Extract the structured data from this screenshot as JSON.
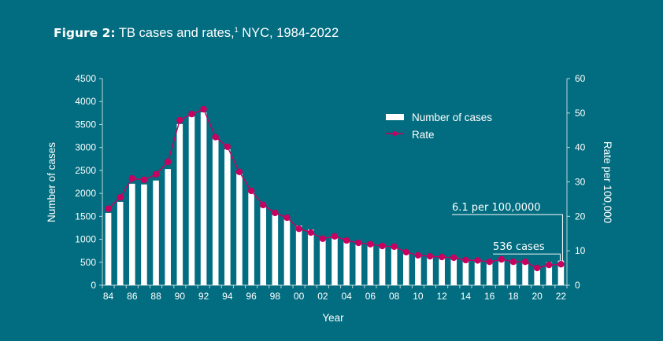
{
  "title": {
    "figure_label": "Figure 2:",
    "text": " TB cases and rates,",
    "footnote": "1",
    "suffix": " NYC, 1984-2022"
  },
  "colors": {
    "background": "#026d80",
    "bars": "#ffffff",
    "rate_line": "#c8005f",
    "axis": "#b9d6dc"
  },
  "chart_data": {
    "type": "bar",
    "title": "Figure 2: TB cases and rates, NYC, 1984-2022",
    "xlabel": "Year",
    "ylabel": "Number of cases",
    "y2label": "Rate per 100,000",
    "ylim": [
      0,
      4500
    ],
    "y2lim": [
      0,
      60
    ],
    "yticks": [
      0,
      500,
      1000,
      1500,
      2000,
      2500,
      3000,
      3500,
      4000,
      4500
    ],
    "y2ticks": [
      0,
      10,
      20,
      30,
      40,
      50,
      60
    ],
    "grid": false,
    "legend_position": "top-right",
    "categories": [
      "84",
      "85",
      "86",
      "87",
      "88",
      "89",
      "90",
      "91",
      "92",
      "93",
      "94",
      "95",
      "96",
      "97",
      "98",
      "99",
      "00",
      "01",
      "02",
      "03",
      "04",
      "05",
      "06",
      "07",
      "08",
      "09",
      "10",
      "11",
      "12",
      "13",
      "14",
      "15",
      "16",
      "17",
      "18",
      "19",
      "20",
      "21",
      "22"
    ],
    "tick_labels": [
      "84",
      "86",
      "88",
      "90",
      "92",
      "94",
      "96",
      "98",
      "00",
      "02",
      "04",
      "06",
      "08",
      "10",
      "12",
      "14",
      "16",
      "18",
      "20",
      "22"
    ],
    "series": [
      {
        "name": "Number of cases",
        "type": "bar",
        "axis": "left",
        "values": [
          1575,
          1815,
          2210,
          2195,
          2280,
          2530,
          3510,
          3675,
          3765,
          3200,
          2960,
          2430,
          2035,
          1700,
          1560,
          1460,
          1300,
          1215,
          1040,
          1100,
          980,
          950,
          870,
          845,
          850,
          735,
          690,
          665,
          630,
          620,
          565,
          555,
          540,
          575,
          550,
          530,
          390,
          500,
          536
        ]
      },
      {
        "name": "Rate",
        "type": "line",
        "axis": "right",
        "values": [
          22.2,
          25.5,
          31.0,
          30.6,
          32.2,
          35.8,
          47.9,
          49.7,
          51.1,
          43.0,
          40.2,
          32.9,
          27.4,
          23.3,
          21.0,
          19.6,
          16.4,
          15.3,
          13.5,
          14.2,
          13.0,
          12.3,
          11.9,
          11.4,
          11.2,
          9.6,
          8.7,
          8.4,
          8.2,
          8.0,
          7.3,
          7.2,
          6.8,
          7.5,
          6.8,
          6.8,
          5.0,
          5.9,
          6.1
        ]
      }
    ],
    "annotations": [
      {
        "text": "6.1 per 100,0000",
        "target_category": "22",
        "target_series": "Rate",
        "value": 20.5
      },
      {
        "text": "536 cases",
        "target_category": "22",
        "target_series": "Number of cases",
        "value": 800
      }
    ]
  }
}
